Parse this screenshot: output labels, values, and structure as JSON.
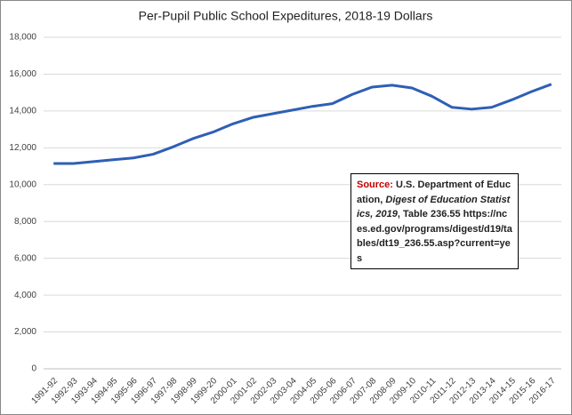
{
  "chart_data": {
    "type": "line",
    "title": "Per-Pupil Public School Expeditures, 2018-19 Dollars",
    "categories": [
      "1991-92",
      "1992-93",
      "1993-94",
      "1994-95",
      "1995-96",
      "1996-97",
      "1997-98",
      "1998-99",
      "1999-20",
      "2000-01",
      "2001-02",
      "2002-03",
      "2003-04",
      "2004-05",
      "2005-06",
      "2006-07",
      "2007-08",
      "2008-09",
      "2009-10",
      "2010-11",
      "2011-12",
      "2012-13",
      "2013-14",
      "2014-15",
      "2015-16",
      "2016-17"
    ],
    "series": [
      {
        "name": "Per-pupil expenditures",
        "color": "#2e5fb5",
        "values": [
          11150,
          11150,
          11250,
          11350,
          11450,
          11650,
          12050,
          12500,
          12850,
          13300,
          13650,
          13850,
          14050,
          14250,
          14400,
          14900,
          15300,
          15400,
          15250,
          14800,
          14200,
          14100,
          14200,
          14600,
          15050,
          15450
        ]
      }
    ],
    "ylim": [
      0,
      18000
    ],
    "yticks": [
      0,
      {
        "value": 2000,
        "label": "2,000"
      },
      {
        "value": 4000,
        "label": "4,000"
      },
      {
        "value": 6000,
        "label": "6,000"
      },
      {
        "value": 8000,
        "label": "8,000"
      },
      {
        "value": 10000,
        "label": "10,000"
      },
      {
        "value": 12000,
        "label": "12,000"
      },
      {
        "value": 14000,
        "label": "14,000"
      },
      {
        "value": 16000,
        "label": "16,000"
      },
      {
        "value": 18000,
        "label": "18,000"
      }
    ],
    "grid": true,
    "annotation": [
      "Source:",
      " U.S. Department of Education, ",
      "Digest of Education Statistics, 2019",
      ", Table 236.55 https://nces.ed.gov/programs/digest/d19/tables/dt19_236.55.asp?current=yes"
    ]
  }
}
